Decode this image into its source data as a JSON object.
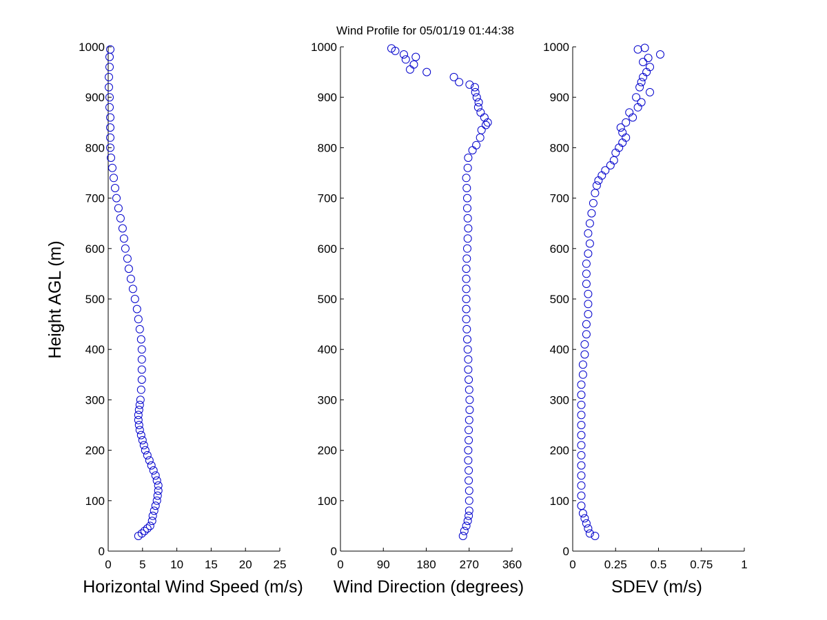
{
  "title": "Wind Profile for  05/01/19 01:44:38",
  "colors": {
    "marker": "#0000cc",
    "axis": "#000000",
    "background": "#ffffff"
  },
  "chart_data": [
    {
      "type": "scatter",
      "xlabel": "Horizontal Wind Speed (m/s)",
      "ylabel": "Height AGL (m)",
      "xlim": [
        0,
        25
      ],
      "ylim": [
        0,
        1000
      ],
      "xticks": [
        "0",
        "5",
        "10",
        "15",
        "20",
        "25"
      ],
      "yticks": [
        "0",
        "100",
        "200",
        "300",
        "400",
        "500",
        "600",
        "700",
        "800",
        "900",
        "1000"
      ],
      "grid": false,
      "points": [
        [
          4.4,
          30
        ],
        [
          4.9,
          35
        ],
        [
          5.3,
          40
        ],
        [
          5.7,
          45
        ],
        [
          6.1,
          50
        ],
        [
          6.4,
          60
        ],
        [
          6.5,
          70
        ],
        [
          6.7,
          80
        ],
        [
          6.9,
          90
        ],
        [
          7.1,
          100
        ],
        [
          7.2,
          110
        ],
        [
          7.3,
          120
        ],
        [
          7.3,
          130
        ],
        [
          7.1,
          140
        ],
        [
          6.9,
          150
        ],
        [
          6.6,
          160
        ],
        [
          6.3,
          170
        ],
        [
          6.0,
          180
        ],
        [
          5.7,
          190
        ],
        [
          5.4,
          200
        ],
        [
          5.2,
          210
        ],
        [
          5.0,
          220
        ],
        [
          4.8,
          230
        ],
        [
          4.6,
          240
        ],
        [
          4.5,
          250
        ],
        [
          4.4,
          260
        ],
        [
          4.4,
          270
        ],
        [
          4.5,
          280
        ],
        [
          4.6,
          290
        ],
        [
          4.7,
          300
        ],
        [
          4.8,
          320
        ],
        [
          4.9,
          340
        ],
        [
          4.9,
          360
        ],
        [
          4.9,
          380
        ],
        [
          4.9,
          400
        ],
        [
          4.8,
          420
        ],
        [
          4.6,
          440
        ],
        [
          4.4,
          460
        ],
        [
          4.2,
          480
        ],
        [
          3.9,
          500
        ],
        [
          3.6,
          520
        ],
        [
          3.3,
          540
        ],
        [
          3.0,
          560
        ],
        [
          2.8,
          580
        ],
        [
          2.5,
          600
        ],
        [
          2.3,
          620
        ],
        [
          2.1,
          640
        ],
        [
          1.8,
          660
        ],
        [
          1.5,
          680
        ],
        [
          1.2,
          700
        ],
        [
          1.0,
          720
        ],
        [
          0.8,
          740
        ],
        [
          0.6,
          760
        ],
        [
          0.4,
          780
        ],
        [
          0.3,
          800
        ],
        [
          0.3,
          820
        ],
        [
          0.3,
          840
        ],
        [
          0.3,
          860
        ],
        [
          0.2,
          880
        ],
        [
          0.2,
          900
        ],
        [
          0.1,
          920
        ],
        [
          0.1,
          940
        ],
        [
          0.2,
          960
        ],
        [
          0.2,
          980
        ],
        [
          0.3,
          995
        ]
      ]
    },
    {
      "type": "scatter",
      "xlabel": "Wind Direction (degrees)",
      "xlim": [
        0,
        360
      ],
      "ylim": [
        0,
        1000
      ],
      "xticks": [
        "0",
        "90",
        "180",
        "270",
        "360"
      ],
      "yticks": [
        "0",
        "100",
        "200",
        "300",
        "400",
        "500",
        "600",
        "700",
        "800",
        "900",
        "1000"
      ],
      "grid": false,
      "points": [
        [
          257,
          30
        ],
        [
          260,
          40
        ],
        [
          264,
          50
        ],
        [
          267,
          60
        ],
        [
          269,
          70
        ],
        [
          270,
          80
        ],
        [
          270,
          100
        ],
        [
          270,
          120
        ],
        [
          269,
          140
        ],
        [
          269,
          160
        ],
        [
          268,
          180
        ],
        [
          268,
          200
        ],
        [
          269,
          220
        ],
        [
          269,
          240
        ],
        [
          270,
          260
        ],
        [
          271,
          280
        ],
        [
          271,
          300
        ],
        [
          270,
          320
        ],
        [
          269,
          340
        ],
        [
          268,
          360
        ],
        [
          268,
          380
        ],
        [
          267,
          400
        ],
        [
          266,
          420
        ],
        [
          265,
          440
        ],
        [
          264,
          460
        ],
        [
          264,
          480
        ],
        [
          264,
          500
        ],
        [
          264,
          520
        ],
        [
          264,
          540
        ],
        [
          264,
          560
        ],
        [
          265,
          580
        ],
        [
          266,
          600
        ],
        [
          267,
          620
        ],
        [
          268,
          640
        ],
        [
          267,
          660
        ],
        [
          266,
          680
        ],
        [
          266,
          700
        ],
        [
          265,
          720
        ],
        [
          264,
          740
        ],
        [
          267,
          760
        ],
        [
          268,
          780
        ],
        [
          277,
          795
        ],
        [
          285,
          805
        ],
        [
          293,
          820
        ],
        [
          296,
          835
        ],
        [
          305,
          845
        ],
        [
          309,
          850
        ],
        [
          302,
          860
        ],
        [
          294,
          870
        ],
        [
          289,
          880
        ],
        [
          290,
          890
        ],
        [
          286,
          900
        ],
        [
          283,
          910
        ],
        [
          282,
          920
        ],
        [
          271,
          925
        ],
        [
          249,
          930
        ],
        [
          238,
          940
        ],
        [
          181,
          950
        ],
        [
          146,
          955
        ],
        [
          154,
          965
        ],
        [
          137,
          975
        ],
        [
          158,
          980
        ],
        [
          133,
          985
        ],
        [
          115,
          992
        ],
        [
          107,
          997
        ]
      ]
    },
    {
      "type": "scatter",
      "xlabel": "SDEV  (m/s)",
      "xlim": [
        0,
        1
      ],
      "xticks": [
        "0",
        "0.25",
        "0.5",
        "0.75",
        "1"
      ],
      "ylim": [
        0,
        1000
      ],
      "yticks": [
        "0",
        "100",
        "200",
        "300",
        "400",
        "500",
        "600",
        "700",
        "800",
        "900",
        "1000"
      ],
      "grid": false,
      "points": [
        [
          0.13,
          30
        ],
        [
          0.1,
          35
        ],
        [
          0.09,
          45
        ],
        [
          0.08,
          55
        ],
        [
          0.07,
          65
        ],
        [
          0.06,
          75
        ],
        [
          0.05,
          90
        ],
        [
          0.05,
          110
        ],
        [
          0.05,
          130
        ],
        [
          0.05,
          150
        ],
        [
          0.05,
          170
        ],
        [
          0.05,
          190
        ],
        [
          0.05,
          210
        ],
        [
          0.05,
          230
        ],
        [
          0.05,
          250
        ],
        [
          0.05,
          270
        ],
        [
          0.05,
          290
        ],
        [
          0.05,
          310
        ],
        [
          0.05,
          330
        ],
        [
          0.06,
          350
        ],
        [
          0.06,
          370
        ],
        [
          0.07,
          390
        ],
        [
          0.07,
          410
        ],
        [
          0.08,
          430
        ],
        [
          0.08,
          450
        ],
        [
          0.09,
          470
        ],
        [
          0.09,
          490
        ],
        [
          0.09,
          510
        ],
        [
          0.08,
          530
        ],
        [
          0.08,
          550
        ],
        [
          0.08,
          570
        ],
        [
          0.09,
          590
        ],
        [
          0.1,
          610
        ],
        [
          0.09,
          630
        ],
        [
          0.1,
          650
        ],
        [
          0.11,
          670
        ],
        [
          0.12,
          690
        ],
        [
          0.13,
          710
        ],
        [
          0.14,
          725
        ],
        [
          0.15,
          735
        ],
        [
          0.17,
          745
        ],
        [
          0.19,
          755
        ],
        [
          0.22,
          765
        ],
        [
          0.24,
          775
        ],
        [
          0.25,
          790
        ],
        [
          0.27,
          800
        ],
        [
          0.29,
          810
        ],
        [
          0.31,
          820
        ],
        [
          0.29,
          830
        ],
        [
          0.28,
          840
        ],
        [
          0.31,
          850
        ],
        [
          0.35,
          860
        ],
        [
          0.33,
          870
        ],
        [
          0.38,
          880
        ],
        [
          0.4,
          890
        ],
        [
          0.37,
          900
        ],
        [
          0.45,
          910
        ],
        [
          0.39,
          920
        ],
        [
          0.4,
          930
        ],
        [
          0.41,
          940
        ],
        [
          0.43,
          950
        ],
        [
          0.45,
          960
        ],
        [
          0.41,
          970
        ],
        [
          0.44,
          978
        ],
        [
          0.51,
          985
        ],
        [
          0.38,
          995
        ],
        [
          0.42,
          998
        ]
      ]
    }
  ]
}
